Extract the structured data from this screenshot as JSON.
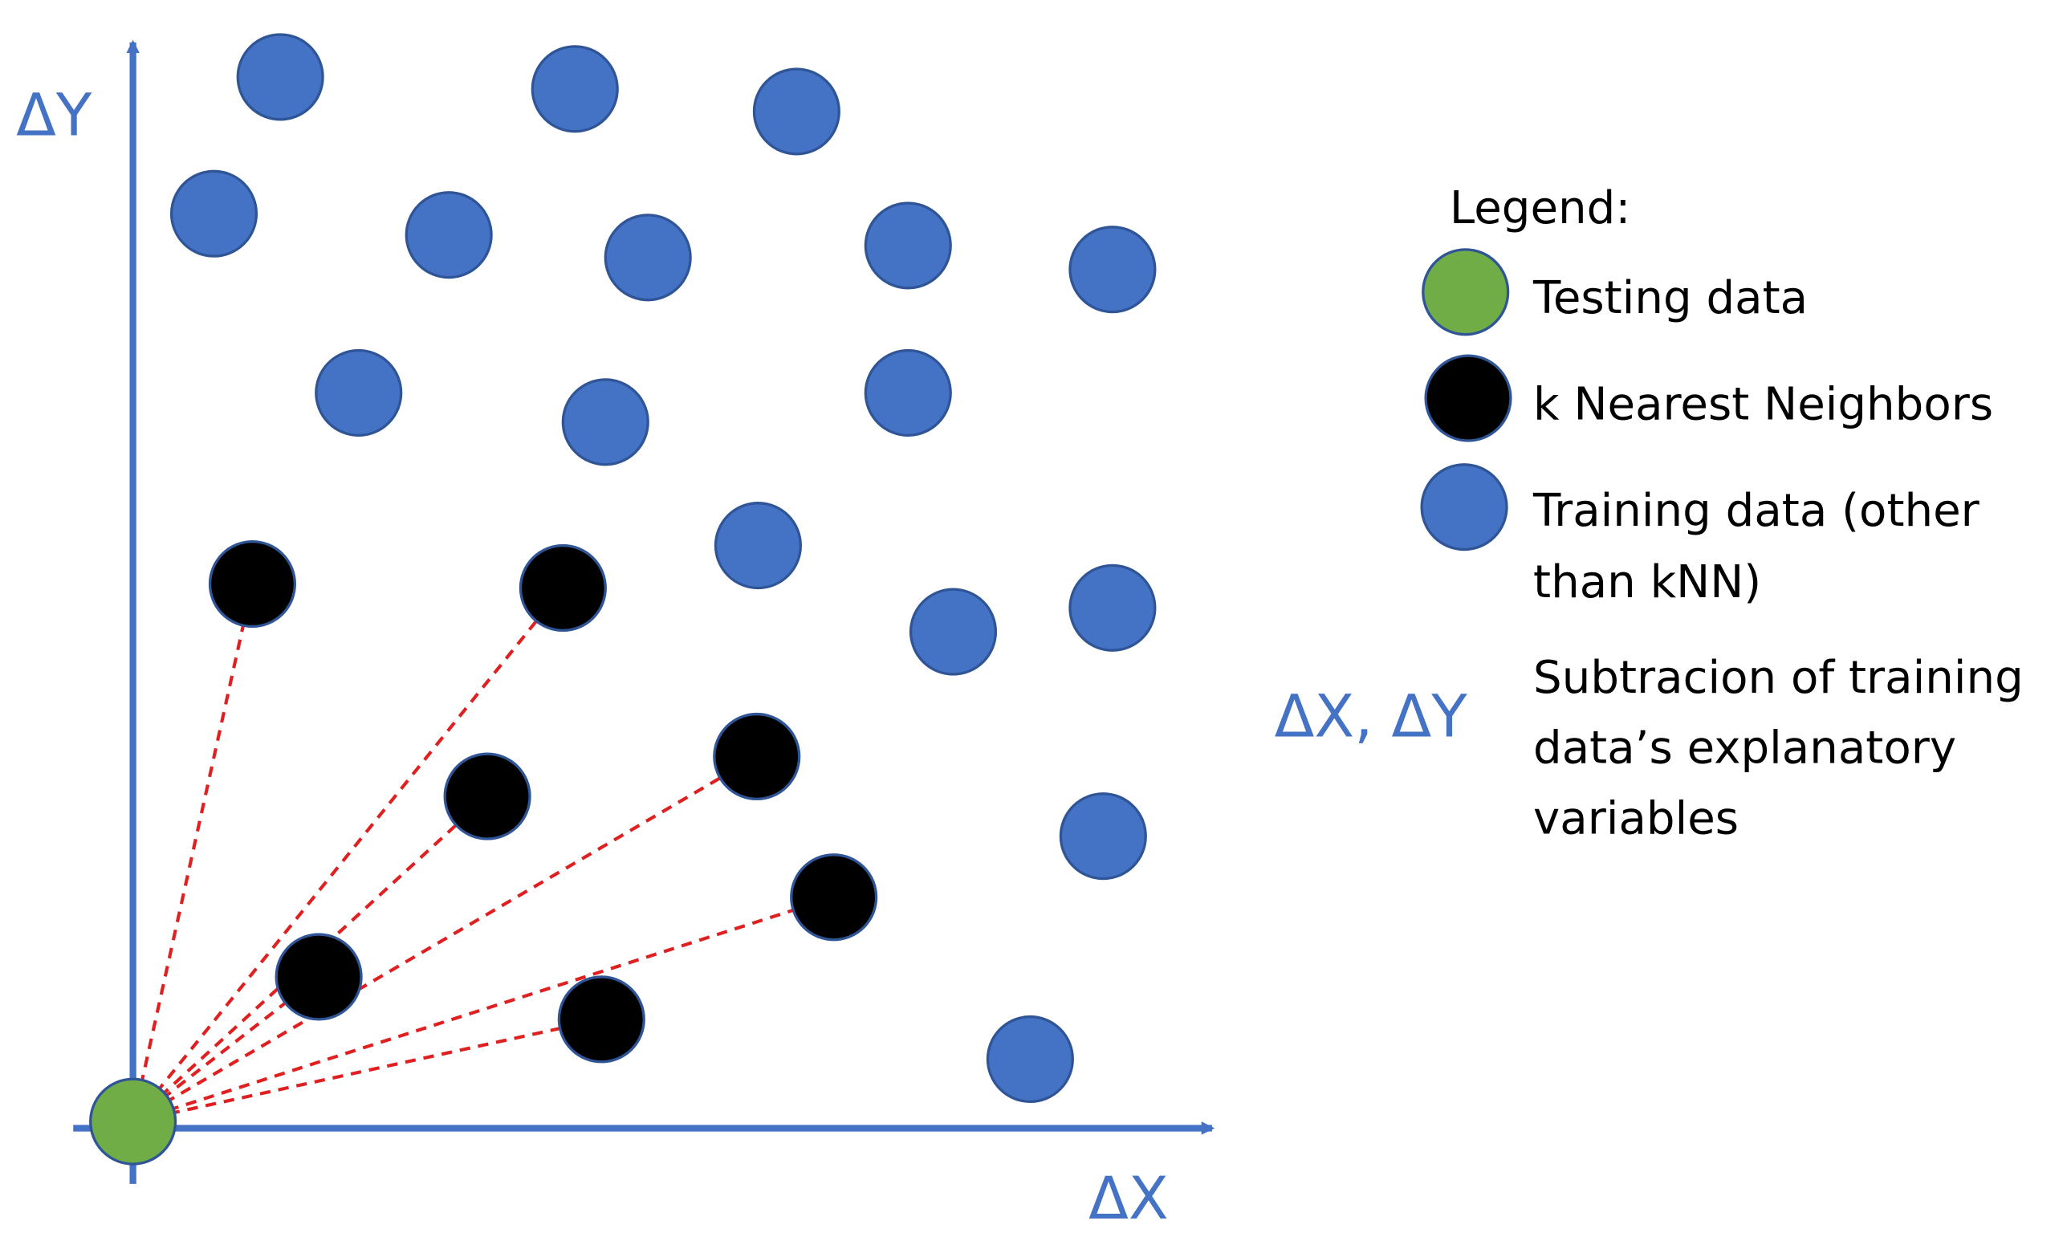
{
  "axes": {
    "y_label": "ΔY",
    "x_label": "ΔX"
  },
  "legend": {
    "title": "Legend:",
    "items": [
      {
        "lines": [
          "Testing data"
        ]
      },
      {
        "lines": [
          "k Nearest Neighbors"
        ]
      },
      {
        "lines": [
          "Training data (other",
          "than kNN)"
        ]
      }
    ],
    "key": {
      "symbol": "ΔX, ΔY",
      "lines": [
        "Subtracion of training",
        "data’s explanatory",
        "variables"
      ]
    }
  }
}
